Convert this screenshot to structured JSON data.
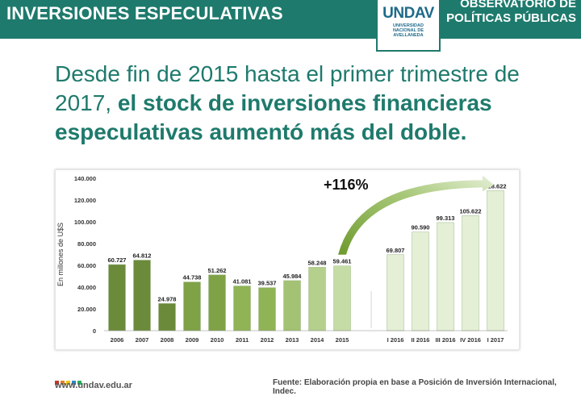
{
  "header": {
    "title": "INVERSIONES ESPECULATIVAS",
    "logo_text": "UNDAV",
    "logo_subtext_1": "UNIVERSIDAD",
    "logo_subtext_2": "NACIONAL DE",
    "logo_subtext_3": "AVELLANEDA",
    "observatorio_line1": "OBSERVATORIO DE",
    "observatorio_line2": "POLÍTICAS PÚBLICAS",
    "bar_color": "#1e7a6c"
  },
  "headline": {
    "normal": "Desde fin de 2015 hasta el primer trimestre de 2017, ",
    "bold": "el stock de inversiones financieras especulativas aumentó más del doble."
  },
  "chart_data": {
    "type": "bar",
    "ylabel": "En millones de U$S",
    "ylim": [
      0,
      140000
    ],
    "yticks": [
      "0",
      "20.000",
      "40.000",
      "60.000",
      "80.000",
      "100.000",
      "120.000",
      "140.000"
    ],
    "ytick_values": [
      0,
      20000,
      40000,
      60000,
      80000,
      100000,
      120000,
      140000
    ],
    "grid": false,
    "annotation": "+116%",
    "series": [
      {
        "group": "annual",
        "categories": [
          "2006",
          "2007",
          "2008",
          "2009",
          "2010",
          "2011",
          "2012",
          "2013",
          "2014",
          "2015"
        ],
        "values": [
          60727,
          64812,
          24978,
          44738,
          51262,
          41081,
          39537,
          45984,
          58248,
          59461
        ],
        "labels": [
          "60.727",
          "64.812",
          "24.978",
          "44.738",
          "51.262",
          "41.081",
          "39.537",
          "45.984",
          "58.248",
          "59.461"
        ],
        "colors": [
          "#6b8a3a",
          "#6b8a3a",
          "#6b8a3a",
          "#7fa247",
          "#7fa247",
          "#8fb355",
          "#8fb355",
          "#a4c273",
          "#b5d08c",
          "#c6dca6"
        ]
      },
      {
        "group": "quarterly",
        "categories": [
          "I 2016",
          "II 2016",
          "III 2016",
          "IV 2016",
          "I 2017"
        ],
        "values": [
          69807,
          90590,
          99313,
          105622,
          128622
        ],
        "labels": [
          "69.807",
          "90.590",
          "99.313",
          "105.622",
          "128.622"
        ],
        "colors": [
          "#e4efd6",
          "#e4efd6",
          "#e4efd6",
          "#e4efd6",
          "#e4efd6"
        ]
      }
    ]
  },
  "footer": {
    "url": "www.undav.edu.ar",
    "source": "Fuente: Elaboración propia en base a Posición de Inversión Internacional, Indec."
  }
}
